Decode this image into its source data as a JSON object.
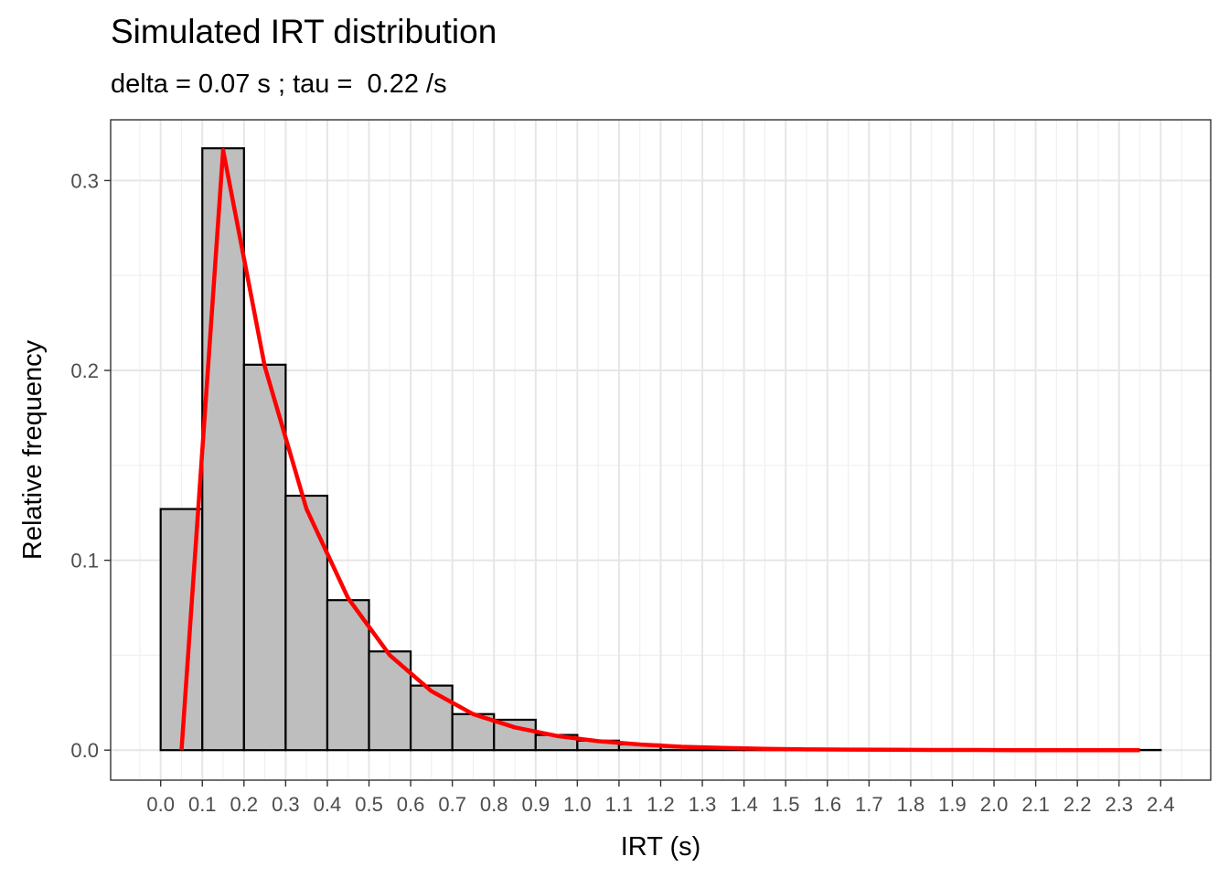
{
  "chart_data": {
    "type": "bar",
    "title": "Simulated IRT distribution",
    "subtitle": "delta = 0.07 s ; tau =  0.22 /s",
    "xlabel": "IRT (s)",
    "ylabel": "Relative frequency",
    "xlim": [
      -0.12,
      2.52
    ],
    "ylim": [
      -0.0158,
      0.332
    ],
    "x_ticks": [
      0.0,
      0.1,
      0.2,
      0.3,
      0.4,
      0.5,
      0.6,
      0.7,
      0.8,
      0.9,
      1.0,
      1.1,
      1.2,
      1.3,
      1.4,
      1.5,
      1.6,
      1.7,
      1.8,
      1.9,
      2.0,
      2.1,
      2.2,
      2.3,
      2.4
    ],
    "x_tick_labels": [
      "0.0",
      "0.1",
      "0.2",
      "0.3",
      "0.4",
      "0.5",
      "0.6",
      "0.7",
      "0.8",
      "0.9",
      "1.0",
      "1.1",
      "1.2",
      "1.3",
      "1.4",
      "1.5",
      "1.6",
      "1.7",
      "1.8",
      "1.9",
      "2.0",
      "2.1",
      "2.2",
      "2.3",
      "2.4"
    ],
    "y_ticks": [
      0.0,
      0.1,
      0.2,
      0.3
    ],
    "y_tick_labels": [
      "0.0",
      "0.1",
      "0.2",
      "0.3"
    ],
    "grid": true,
    "bin_width": 0.1,
    "histogram": {
      "bin_starts": [
        0.0,
        0.1,
        0.2,
        0.3,
        0.4,
        0.5,
        0.6,
        0.7,
        0.8,
        0.9,
        1.0,
        1.1,
        1.2,
        1.3,
        1.4,
        1.5,
        1.6,
        1.7,
        1.8,
        1.9,
        2.0,
        2.1,
        2.2,
        2.3
      ],
      "values": [
        0.127,
        0.317,
        0.203,
        0.134,
        0.079,
        0.052,
        0.034,
        0.019,
        0.016,
        0.008,
        0.005,
        0.003,
        0.002,
        0.001,
        0.001,
        0.0005,
        0.0003,
        0.0002,
        0.0002,
        0.0001,
        0.0001,
        0.0001,
        0.0001,
        0.0001
      ],
      "fill": "#bebebe",
      "stroke": "#000000"
    },
    "curve": {
      "color": "#ff0000",
      "x": [
        0.05,
        0.15,
        0.25,
        0.35,
        0.45,
        0.55,
        0.65,
        0.75,
        0.85,
        0.95,
        1.05,
        1.15,
        1.25,
        1.35,
        1.45,
        1.55,
        1.65,
        1.75,
        1.85,
        1.95,
        2.05,
        2.15,
        2.25,
        2.35
      ],
      "y": [
        0.0,
        0.316,
        0.202,
        0.127,
        0.08,
        0.05,
        0.031,
        0.019,
        0.012,
        0.0075,
        0.0047,
        0.003,
        0.0018,
        0.0012,
        0.0007,
        0.0004,
        0.0003,
        0.0002,
        0.0001,
        0.0001,
        0.0,
        0.0,
        0.0,
        0.0
      ]
    }
  }
}
